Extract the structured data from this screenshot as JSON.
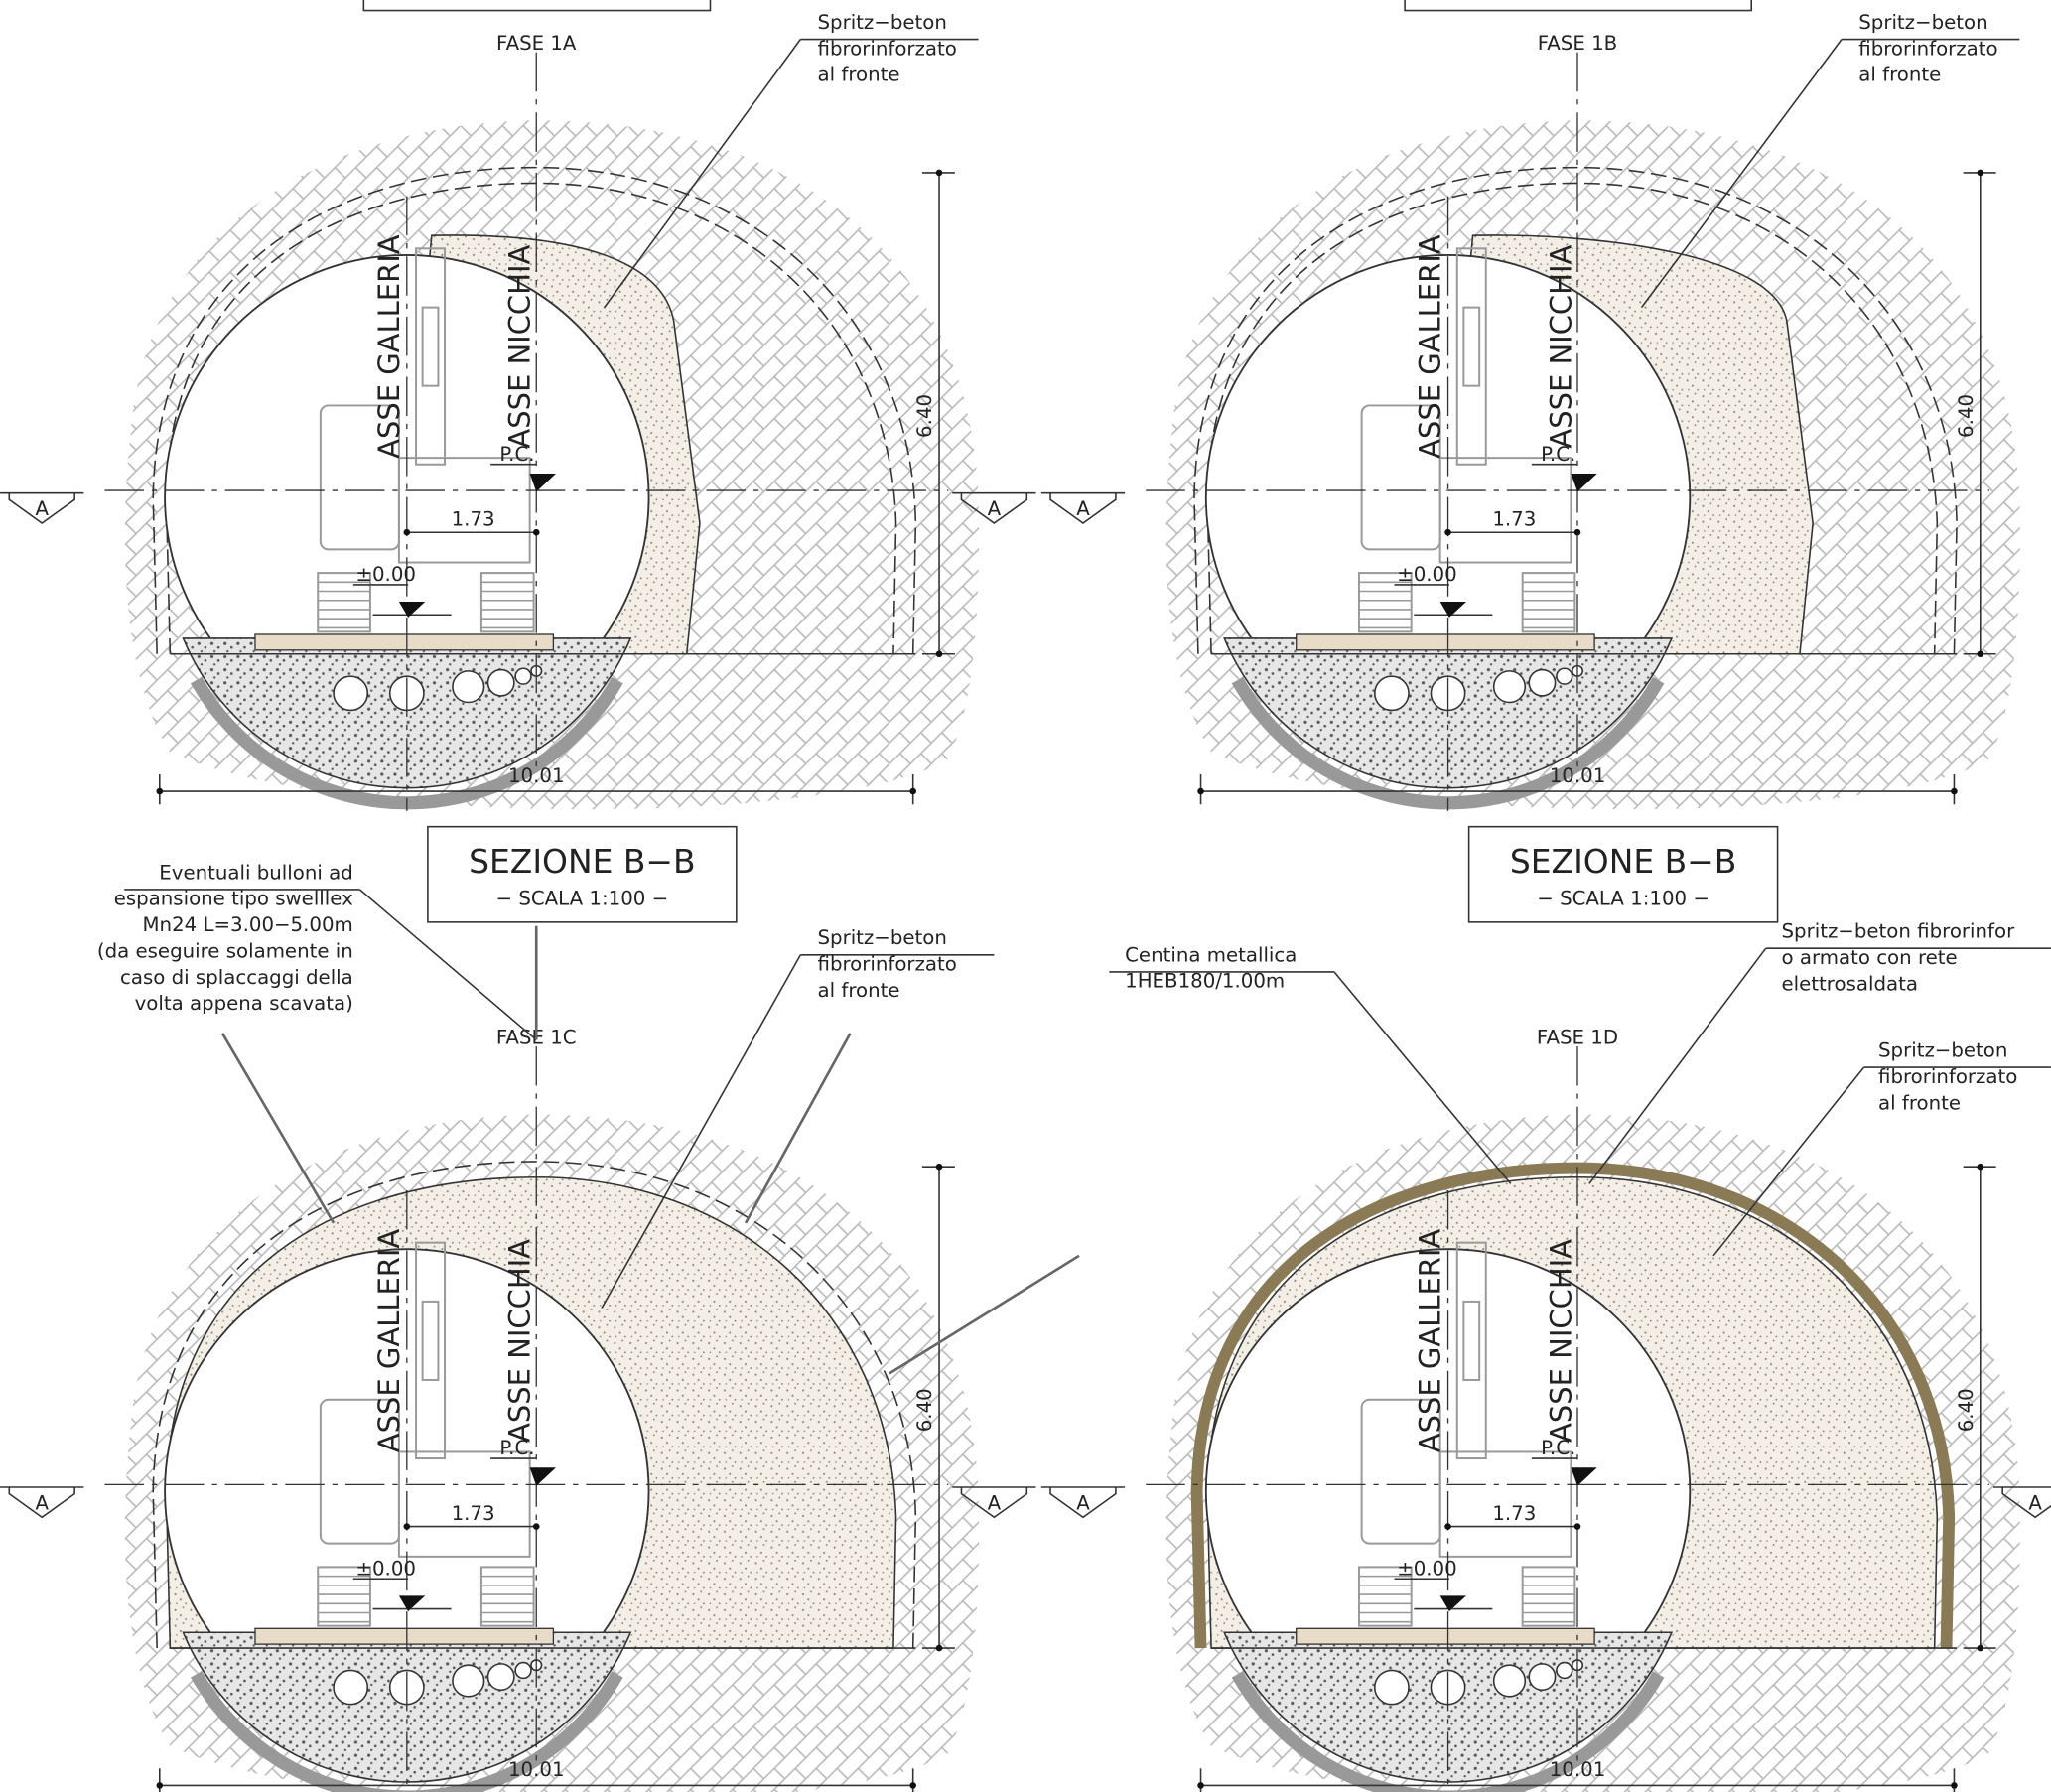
{
  "panels": [
    {
      "phase": "FASE 1A",
      "axis_tunnel": "ASSE GALLERIA",
      "axis_niche": "ASSE NICCHIA",
      "ground_mark": "P.C.",
      "offset_dim": "1.73",
      "level": "±0.00",
      "height_dim": "6.40",
      "width_dim": "10.01",
      "section_marks": [
        "A",
        "A"
      ],
      "notes": [
        {
          "lines": [
            "Spritz−beton",
            "fibrorinforzato",
            "al fronte"
          ]
        }
      ]
    },
    {
      "phase": "FASE 1B",
      "axis_tunnel": "ASSE GALLERIA",
      "axis_niche": "ASSE NICCHIA",
      "ground_mark": "P.C.",
      "offset_dim": "1.73",
      "level": "±0.00",
      "height_dim": "6.40",
      "width_dim": "10.01",
      "section_marks": [
        "A"
      ],
      "notes": [
        {
          "lines": [
            "Spritz−beton",
            "fibrorinforzato",
            "al fronte"
          ]
        }
      ]
    },
    {
      "title": "SEZIONE B−B",
      "scale": "− SCALA 1:100 −",
      "phase": "FASE 1C",
      "axis_tunnel": "ASSE GALLERIA",
      "axis_niche": "ASSE NICCHIA",
      "ground_mark": "P.C.",
      "offset_dim": "1.73",
      "level": "±0.00",
      "height_dim": "6.40",
      "width_dim": "10.01",
      "section_marks": [
        "A",
        "A"
      ],
      "notes": [
        {
          "lines": [
            "Eventuali bulloni ad",
            "espansione tipo swelllex",
            "Mn24 L=3.00−5.00m",
            "(da eseguire solamente in",
            "caso di splaccaggi della",
            "volta appena scavata)"
          ]
        },
        {
          "lines": [
            "Spritz−beton",
            "fibrorinforzato",
            "al fronte"
          ]
        }
      ]
    },
    {
      "title": "SEZIONE B−B",
      "scale": "− SCALA 1:100 −",
      "phase": "FASE 1D",
      "axis_tunnel": "ASSE GALLERIA",
      "axis_niche": "ASSE NICCHIA",
      "ground_mark": "P.C.",
      "offset_dim": "1.73",
      "level": "±0.00",
      "height_dim": "6.40",
      "width_dim": "10.01",
      "section_marks": [
        "A",
        "A"
      ],
      "notes": [
        {
          "lines": [
            "Centina metallica",
            "1HEB180/1.00m"
          ]
        },
        {
          "lines": [
            "Spritz−beton fibrorinfor",
            "o armato con rete",
            "elettrosaldata"
          ]
        },
        {
          "lines": [
            "Spritz−beton",
            "fibrorinforzato",
            "al fronte"
          ]
        }
      ]
    }
  ]
}
